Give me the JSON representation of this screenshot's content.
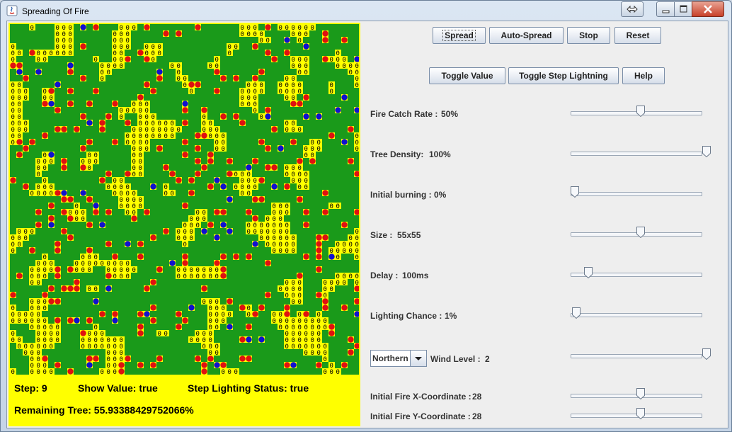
{
  "window": {
    "title": "Spreading Of Fire"
  },
  "grid": {
    "size": 55,
    "colors": {
      "tree": "#1a9a1a",
      "burning": "#e01010",
      "lightning": "#1010d0",
      "empty_bg": "#ffff00",
      "value_text": "#000000"
    },
    "empty_value": "0"
  },
  "status": {
    "step": "Step: 9",
    "show_value": "Show Value: true",
    "step_lighting": "Step Lighting Status: true",
    "remaining": "Remaining Tree: 55.93388429752066%"
  },
  "buttons": {
    "spread": "Spread",
    "auto_spread": "Auto-Spread",
    "stop": "Stop",
    "reset": "Reset",
    "toggle_value": "Toggle Value",
    "toggle_step_lightning": "Toggle Step Lightning",
    "help": "Help"
  },
  "settings": {
    "fire_catch_rate": {
      "label": "Fire Catch Rate :",
      "value": "50%",
      "level": 0.5
    },
    "tree_density": {
      "label": "Tree Density:",
      "value": "100%",
      "level": 1.0
    },
    "initial_burning": {
      "label": "Initial burning :",
      "value": "0%",
      "level": 0.0
    },
    "size": {
      "label": "Size :",
      "value": "55x55",
      "level": 0.5
    },
    "delay": {
      "label": "Delay :",
      "value": "100ms",
      "level": 0.1
    },
    "lighting_chance": {
      "label": "Lighting Chance :",
      "value": "1%",
      "level": 0.01
    },
    "wind": {
      "direction": "Northern",
      "label": "Wind Level :",
      "value": "2",
      "level": 1.0
    },
    "fire_x": {
      "label": "Initial Fire X-Coordinate :",
      "value": "28",
      "level": 0.5
    },
    "fire_y": {
      "label": "Initial Fire Y-Coordinate :",
      "value": "28",
      "level": 0.5
    }
  }
}
